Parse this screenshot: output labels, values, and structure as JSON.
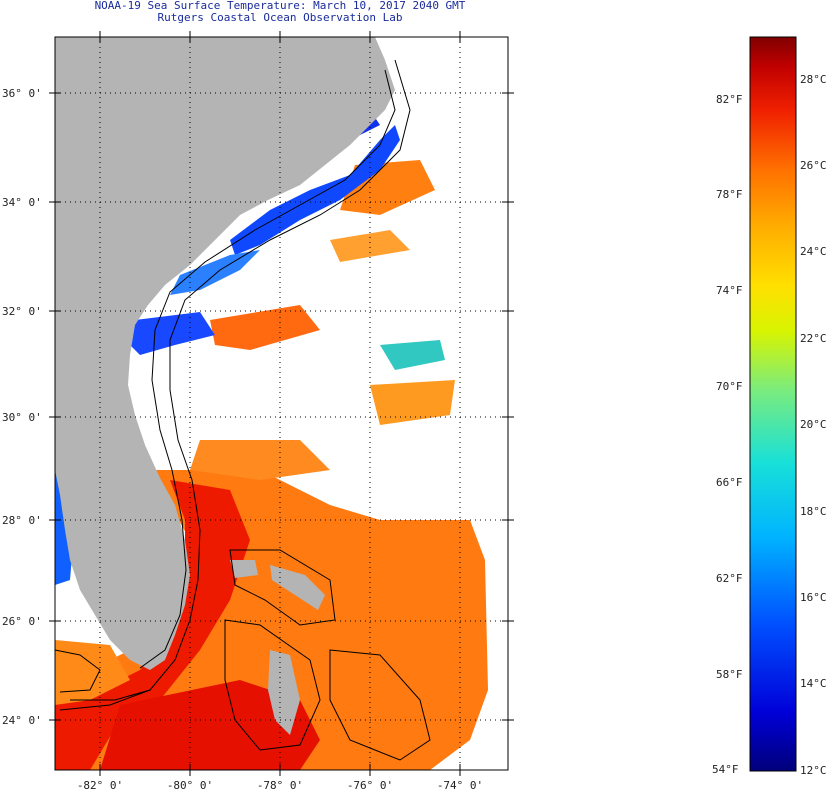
{
  "title": {
    "line1": "NOAA-19 Sea Surface Temperature:  March 10, 2017 2040 GMT",
    "line2": "Rutgers Coastal Ocean Observation Lab"
  },
  "latitude_ticks": [
    "36° 0'",
    "34° 0'",
    "32° 0'",
    "30° 0'",
    "28° 0'",
    "26° 0'",
    "24° 0'"
  ],
  "longitude_ticks": [
    "-82° 0'",
    "-80° 0'",
    "-78° 0'",
    "-76° 0'",
    "-74° 0'"
  ],
  "colorbar": {
    "celsius": [
      "28°C",
      "26°C",
      "24°C",
      "22°C",
      "20°C",
      "18°C",
      "16°C",
      "14°C",
      "12°C"
    ],
    "fahrenheit": [
      "82°F",
      "78°F",
      "74°F",
      "70°F",
      "66°F",
      "62°F",
      "58°F",
      "54°F"
    ],
    "range_c": [
      12,
      29
    ],
    "range_f": [
      54,
      84
    ]
  },
  "colors": {
    "land": "#b4b4b4",
    "title": "#1a2b9c",
    "warm": "#ee1a00",
    "cold": "#1048ff"
  }
}
